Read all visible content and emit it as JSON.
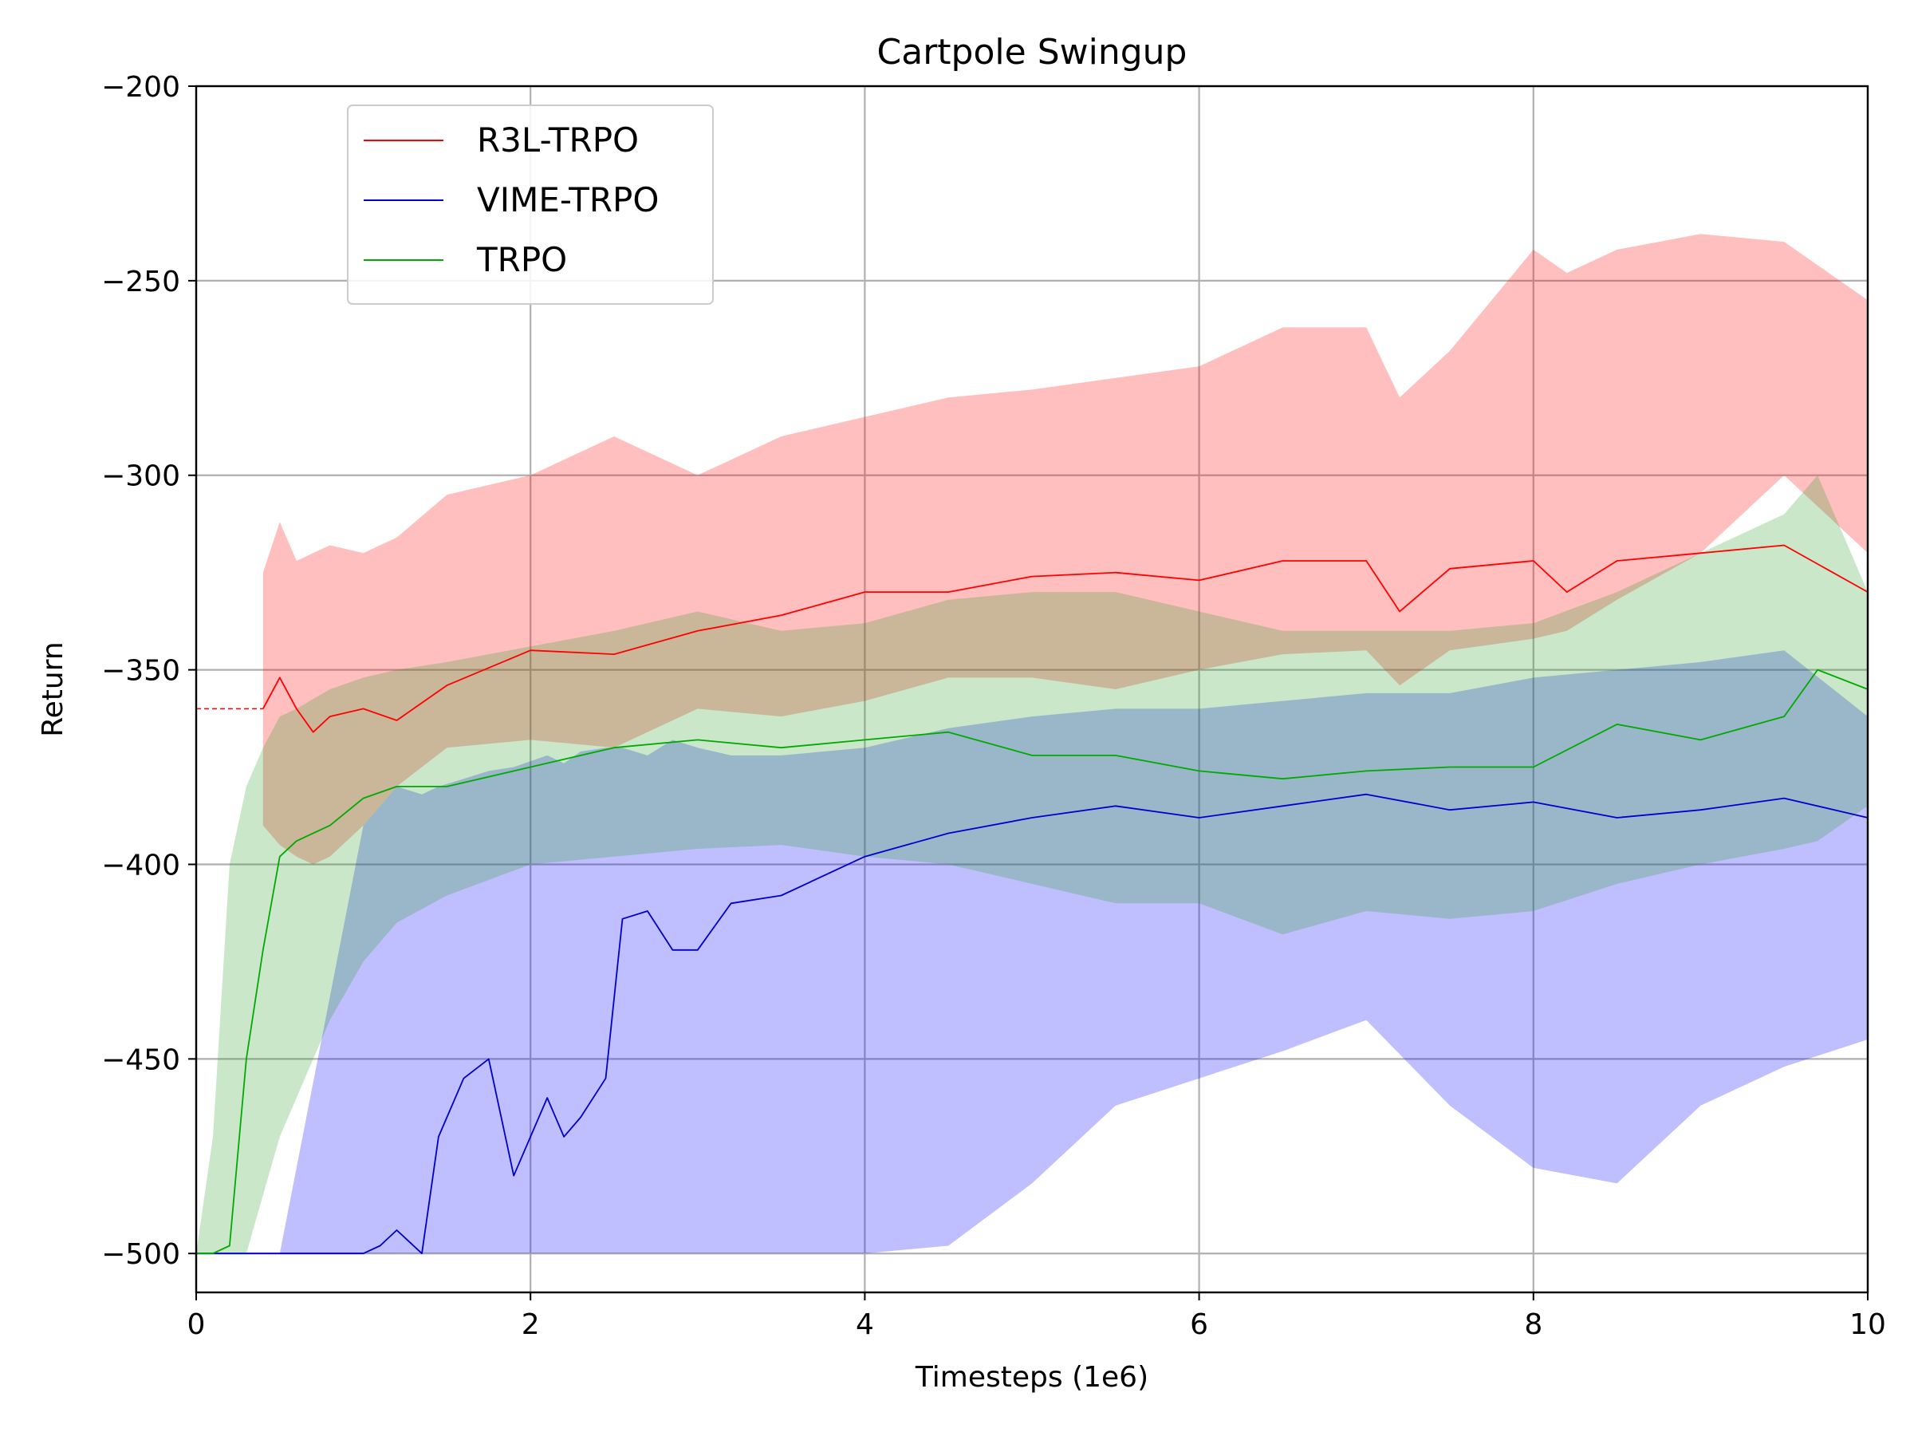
{
  "chart_data": {
    "type": "line",
    "title": "Cartpole Swingup",
    "xlabel": "Timesteps (1e6)",
    "ylabel": "Return",
    "xlim": [
      0,
      10
    ],
    "ylim": [
      -510,
      -200
    ],
    "x_ticks": [
      0,
      2,
      4,
      6,
      8,
      10
    ],
    "x_tick_labels": [
      "0",
      "2",
      "4",
      "6",
      "8",
      "10"
    ],
    "y_ticks": [
      -500,
      -450,
      -400,
      -350,
      -300,
      -250,
      -200
    ],
    "y_tick_labels": [
      "−500",
      "−450",
      "−400",
      "−350",
      "−300",
      "−250",
      "−200"
    ],
    "grid": true,
    "legend_position": "top-left",
    "series": [
      {
        "name": "R3L-TRPO",
        "color": "#ff0000",
        "band_color": "#ff0000",
        "reference_line": {
          "x": [
            0,
            0.4
          ],
          "y": -360
        },
        "x": [
          0.4,
          0.5,
          0.6,
          0.7,
          0.8,
          1.0,
          1.2,
          1.5,
          2.0,
          2.5,
          3.0,
          3.5,
          4.0,
          4.5,
          5.0,
          5.5,
          6.0,
          6.5,
          7.0,
          7.2,
          7.5,
          8.0,
          8.2,
          8.5,
          9.0,
          9.5,
          10.0
        ],
        "y": [
          -360,
          -352,
          -360,
          -366,
          -362,
          -360,
          -363,
          -354,
          -345,
          -346,
          -340,
          -336,
          -330,
          -330,
          -326,
          -325,
          -327,
          -322,
          -322,
          -335,
          -324,
          -322,
          -330,
          -322,
          -320,
          -318,
          -330
        ],
        "upper": [
          -325,
          -312,
          -322,
          -320,
          -318,
          -320,
          -316,
          -305,
          -300,
          -290,
          -300,
          -290,
          -285,
          -280,
          -278,
          -275,
          -272,
          -262,
          -262,
          -280,
          -268,
          -242,
          -248,
          -242,
          -238,
          -240,
          -255
        ],
        "lower": [
          -390,
          -395,
          -398,
          -400,
          -398,
          -390,
          -380,
          -370,
          -368,
          -370,
          -360,
          -362,
          -358,
          -352,
          -352,
          -355,
          -350,
          -346,
          -345,
          -354,
          -345,
          -342,
          -340,
          -332,
          -320,
          -300,
          -320
        ]
      },
      {
        "name": "VIME-TRPO",
        "color": "#0000cc",
        "band_color": "#0000ff",
        "x": [
          0.0,
          0.5,
          1.0,
          1.1,
          1.2,
          1.35,
          1.45,
          1.6,
          1.75,
          1.9,
          2.1,
          2.2,
          2.3,
          2.45,
          2.55,
          2.7,
          2.85,
          3.0,
          3.2,
          3.5,
          4.0,
          4.5,
          5.0,
          5.5,
          6.0,
          6.5,
          7.0,
          7.5,
          8.0,
          8.5,
          9.0,
          9.5,
          10.0
        ],
        "y": [
          -500,
          -500,
          -500,
          -498,
          -494,
          -500,
          -470,
          -455,
          -450,
          -480,
          -460,
          -470,
          -465,
          -455,
          -414,
          -412,
          -422,
          -422,
          -410,
          -408,
          -398,
          -392,
          -388,
          -385,
          -388,
          -385,
          -382,
          -386,
          -384,
          -388,
          -386,
          -383,
          -388
        ],
        "upper": [
          -500,
          -500,
          -390,
          -385,
          -380,
          -382,
          -380,
          -378,
          -376,
          -375,
          -372,
          -374,
          -371,
          -370,
          -370,
          -372,
          -368,
          -370,
          -372,
          -372,
          -370,
          -365,
          -362,
          -360,
          -360,
          -358,
          -356,
          -356,
          -352,
          -350,
          -348,
          -345,
          -362
        ],
        "lower": [
          -500,
          -500,
          -500,
          -500,
          -500,
          -500,
          -500,
          -500,
          -500,
          -500,
          -500,
          -500,
          -500,
          -500,
          -500,
          -500,
          -500,
          -500,
          -500,
          -500,
          -500,
          -498,
          -482,
          -462,
          -455,
          -448,
          -440,
          -462,
          -478,
          -482,
          -462,
          -452,
          -445
        ]
      },
      {
        "name": "TRPO",
        "color": "#00aa00",
        "band_color": "#2ca02c",
        "x": [
          0.0,
          0.1,
          0.2,
          0.3,
          0.4,
          0.5,
          0.6,
          0.8,
          1.0,
          1.2,
          1.5,
          2.0,
          2.5,
          3.0,
          3.5,
          4.0,
          4.5,
          5.0,
          5.5,
          6.0,
          6.5,
          7.0,
          7.5,
          8.0,
          8.5,
          9.0,
          9.5,
          9.7,
          10.0
        ],
        "y": [
          -500,
          -500,
          -498,
          -450,
          -422,
          -398,
          -394,
          -390,
          -383,
          -380,
          -380,
          -375,
          -370,
          -368,
          -370,
          -368,
          -366,
          -372,
          -372,
          -376,
          -378,
          -376,
          -375,
          -375,
          -364,
          -368,
          -362,
          -350,
          -355
        ],
        "upper": [
          -500,
          -470,
          -400,
          -380,
          -370,
          -362,
          -360,
          -355,
          -352,
          -350,
          -348,
          -344,
          -340,
          -335,
          -340,
          -338,
          -332,
          -330,
          -330,
          -335,
          -340,
          -340,
          -340,
          -338,
          -330,
          -320,
          -310,
          -300,
          -330
        ],
        "lower": [
          -500,
          -500,
          -500,
          -500,
          -485,
          -470,
          -460,
          -440,
          -425,
          -415,
          -408,
          -400,
          -398,
          -396,
          -395,
          -398,
          -400,
          -405,
          -410,
          -410,
          -418,
          -412,
          -414,
          -412,
          -405,
          -400,
          -396,
          -394,
          -385
        ]
      }
    ]
  }
}
